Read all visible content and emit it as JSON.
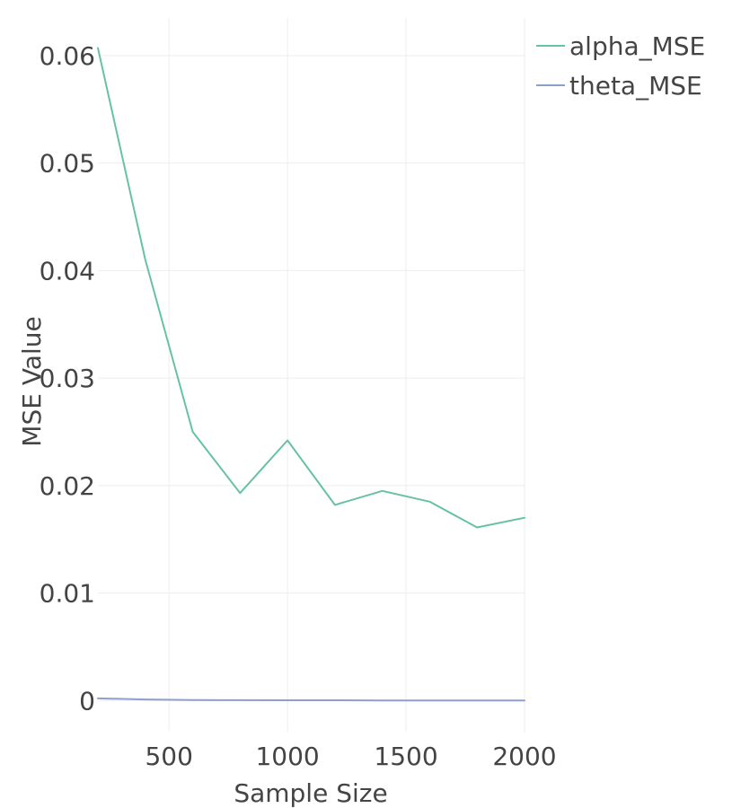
{
  "chart_data": {
    "type": "line",
    "title": "",
    "xlabel": "Sample Size",
    "ylabel": "MSE Value",
    "xlim": [
      200,
      2000
    ],
    "ylim": [
      -0.0029,
      0.0635
    ],
    "x_ticks": [
      500,
      1000,
      1500,
      2000
    ],
    "y_ticks": [
      0,
      0.01,
      0.02,
      0.03,
      0.04,
      0.05,
      0.06
    ],
    "y_tick_labels": [
      "0",
      "0.01",
      "0.02",
      "0.03",
      "0.04",
      "0.05",
      "0.06"
    ],
    "grid": true,
    "legend_position": "top-right",
    "x": [
      200,
      400,
      600,
      800,
      1000,
      1200,
      1400,
      1600,
      1800,
      2000
    ],
    "series": [
      {
        "name": "alpha_MSE",
        "color": "#66c2a5",
        "values": [
          0.0607,
          0.041,
          0.025,
          0.0193,
          0.0242,
          0.0182,
          0.0195,
          0.0185,
          0.0161,
          0.017
        ]
      },
      {
        "name": "theta_MSE",
        "color": "#8da0cb",
        "values": [
          0.0002,
          0.0001,
          5e-05,
          3e-05,
          2e-05,
          2e-05,
          1e-05,
          1e-05,
          1e-05,
          1e-05
        ]
      }
    ]
  }
}
